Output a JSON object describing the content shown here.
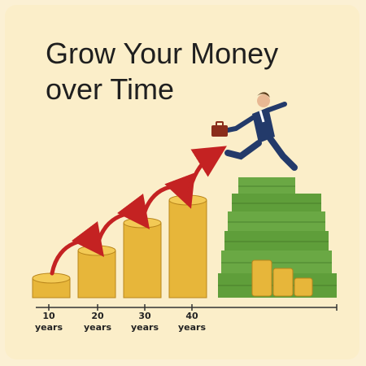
{
  "title": {
    "line1": "Grow Your Money",
    "line2": "over Time"
  },
  "timeline": [
    {
      "value": "10",
      "unit": "years"
    },
    {
      "value": "20",
      "unit": "years"
    },
    {
      "value": "30",
      "unit": "years"
    },
    {
      "value": "40",
      "unit": "years"
    }
  ],
  "colors": {
    "background": "#fbeec9",
    "coin": "#e7b63a",
    "coin_edge": "#b9861c",
    "arrow": "#c42222",
    "cash": "#5f9e3a",
    "cash_dark": "#3f7326"
  },
  "illustration": {
    "figure": "businessman-leaping-icon",
    "briefcase": "briefcase-icon"
  }
}
